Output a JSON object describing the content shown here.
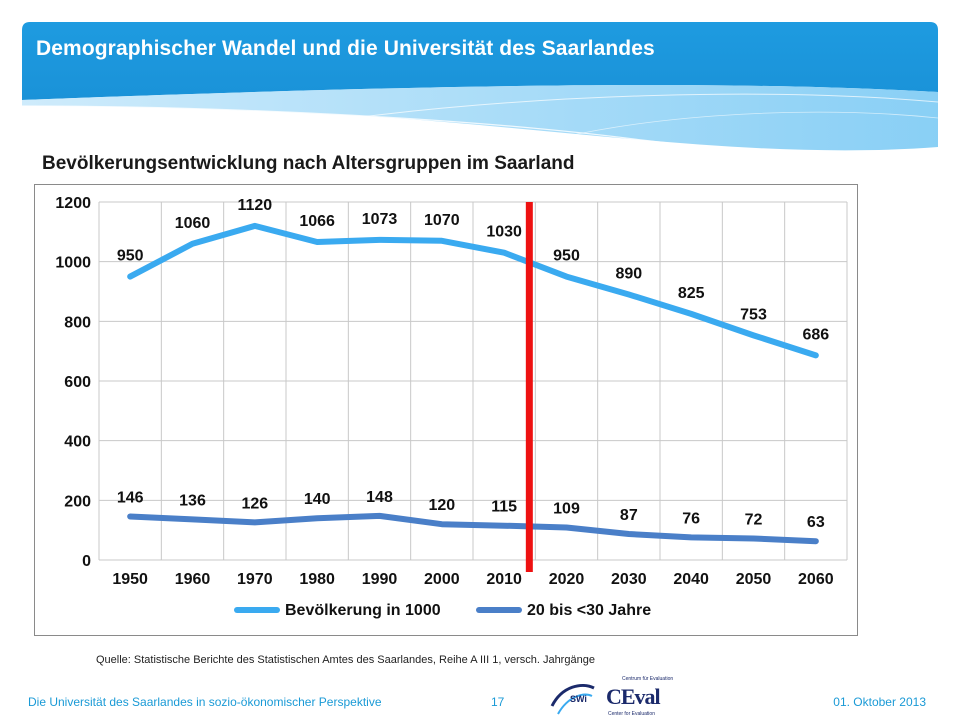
{
  "header": {
    "title": "Demographischer Wandel und die Universität des Saarlandes"
  },
  "slide": {
    "subtitle": "Bevölkerungsentwicklung nach Altersgruppen im Saarland"
  },
  "source": "Quelle:  Statistische Berichte des Statistischen Amtes des Saarlandes, Reihe A III 1, versch. Jahrgänge",
  "footer": {
    "left": "Die Universität des Saarlandes in sozio-ökonomischer Perspektive",
    "page": "17",
    "date": "01. Oktober 2013"
  },
  "logos": {
    "swi": "SWi",
    "ceval": "CEval",
    "ceval_top": "Centrum für Evaluation",
    "ceval_bottom": "Center for Evaluation"
  },
  "colors": {
    "header": "#1e9be0",
    "series1": "#3aaaf0",
    "series2": "#4a7fc8",
    "marker": "#ee1111",
    "footer_text": "#1a9ad6"
  },
  "chart_data": {
    "type": "line",
    "title": "",
    "xlabel": "",
    "ylabel": "",
    "categories": [
      "1950",
      "1960",
      "1970",
      "1980",
      "1990",
      "2000",
      "2010",
      "2020",
      "2030",
      "2040",
      "2050",
      "2060"
    ],
    "ylim": [
      0,
      1200
    ],
    "yticks": [
      "0",
      "200",
      "400",
      "600",
      "800",
      "1000",
      "1200"
    ],
    "grid": true,
    "legend": "bottom",
    "marker_line_between": [
      "2010",
      "2020"
    ],
    "series": [
      {
        "name": "Bevölkerung in 1000",
        "color": "#3aaaf0",
        "values": [
          950,
          1060,
          1120,
          1066,
          1073,
          1070,
          1030,
          950,
          890,
          825,
          753,
          686
        ]
      },
      {
        "name": "20 bis <30 Jahre",
        "color": "#4a7fc8",
        "values": [
          146,
          136,
          126,
          140,
          148,
          120,
          115,
          109,
          87,
          76,
          72,
          63
        ]
      }
    ]
  }
}
